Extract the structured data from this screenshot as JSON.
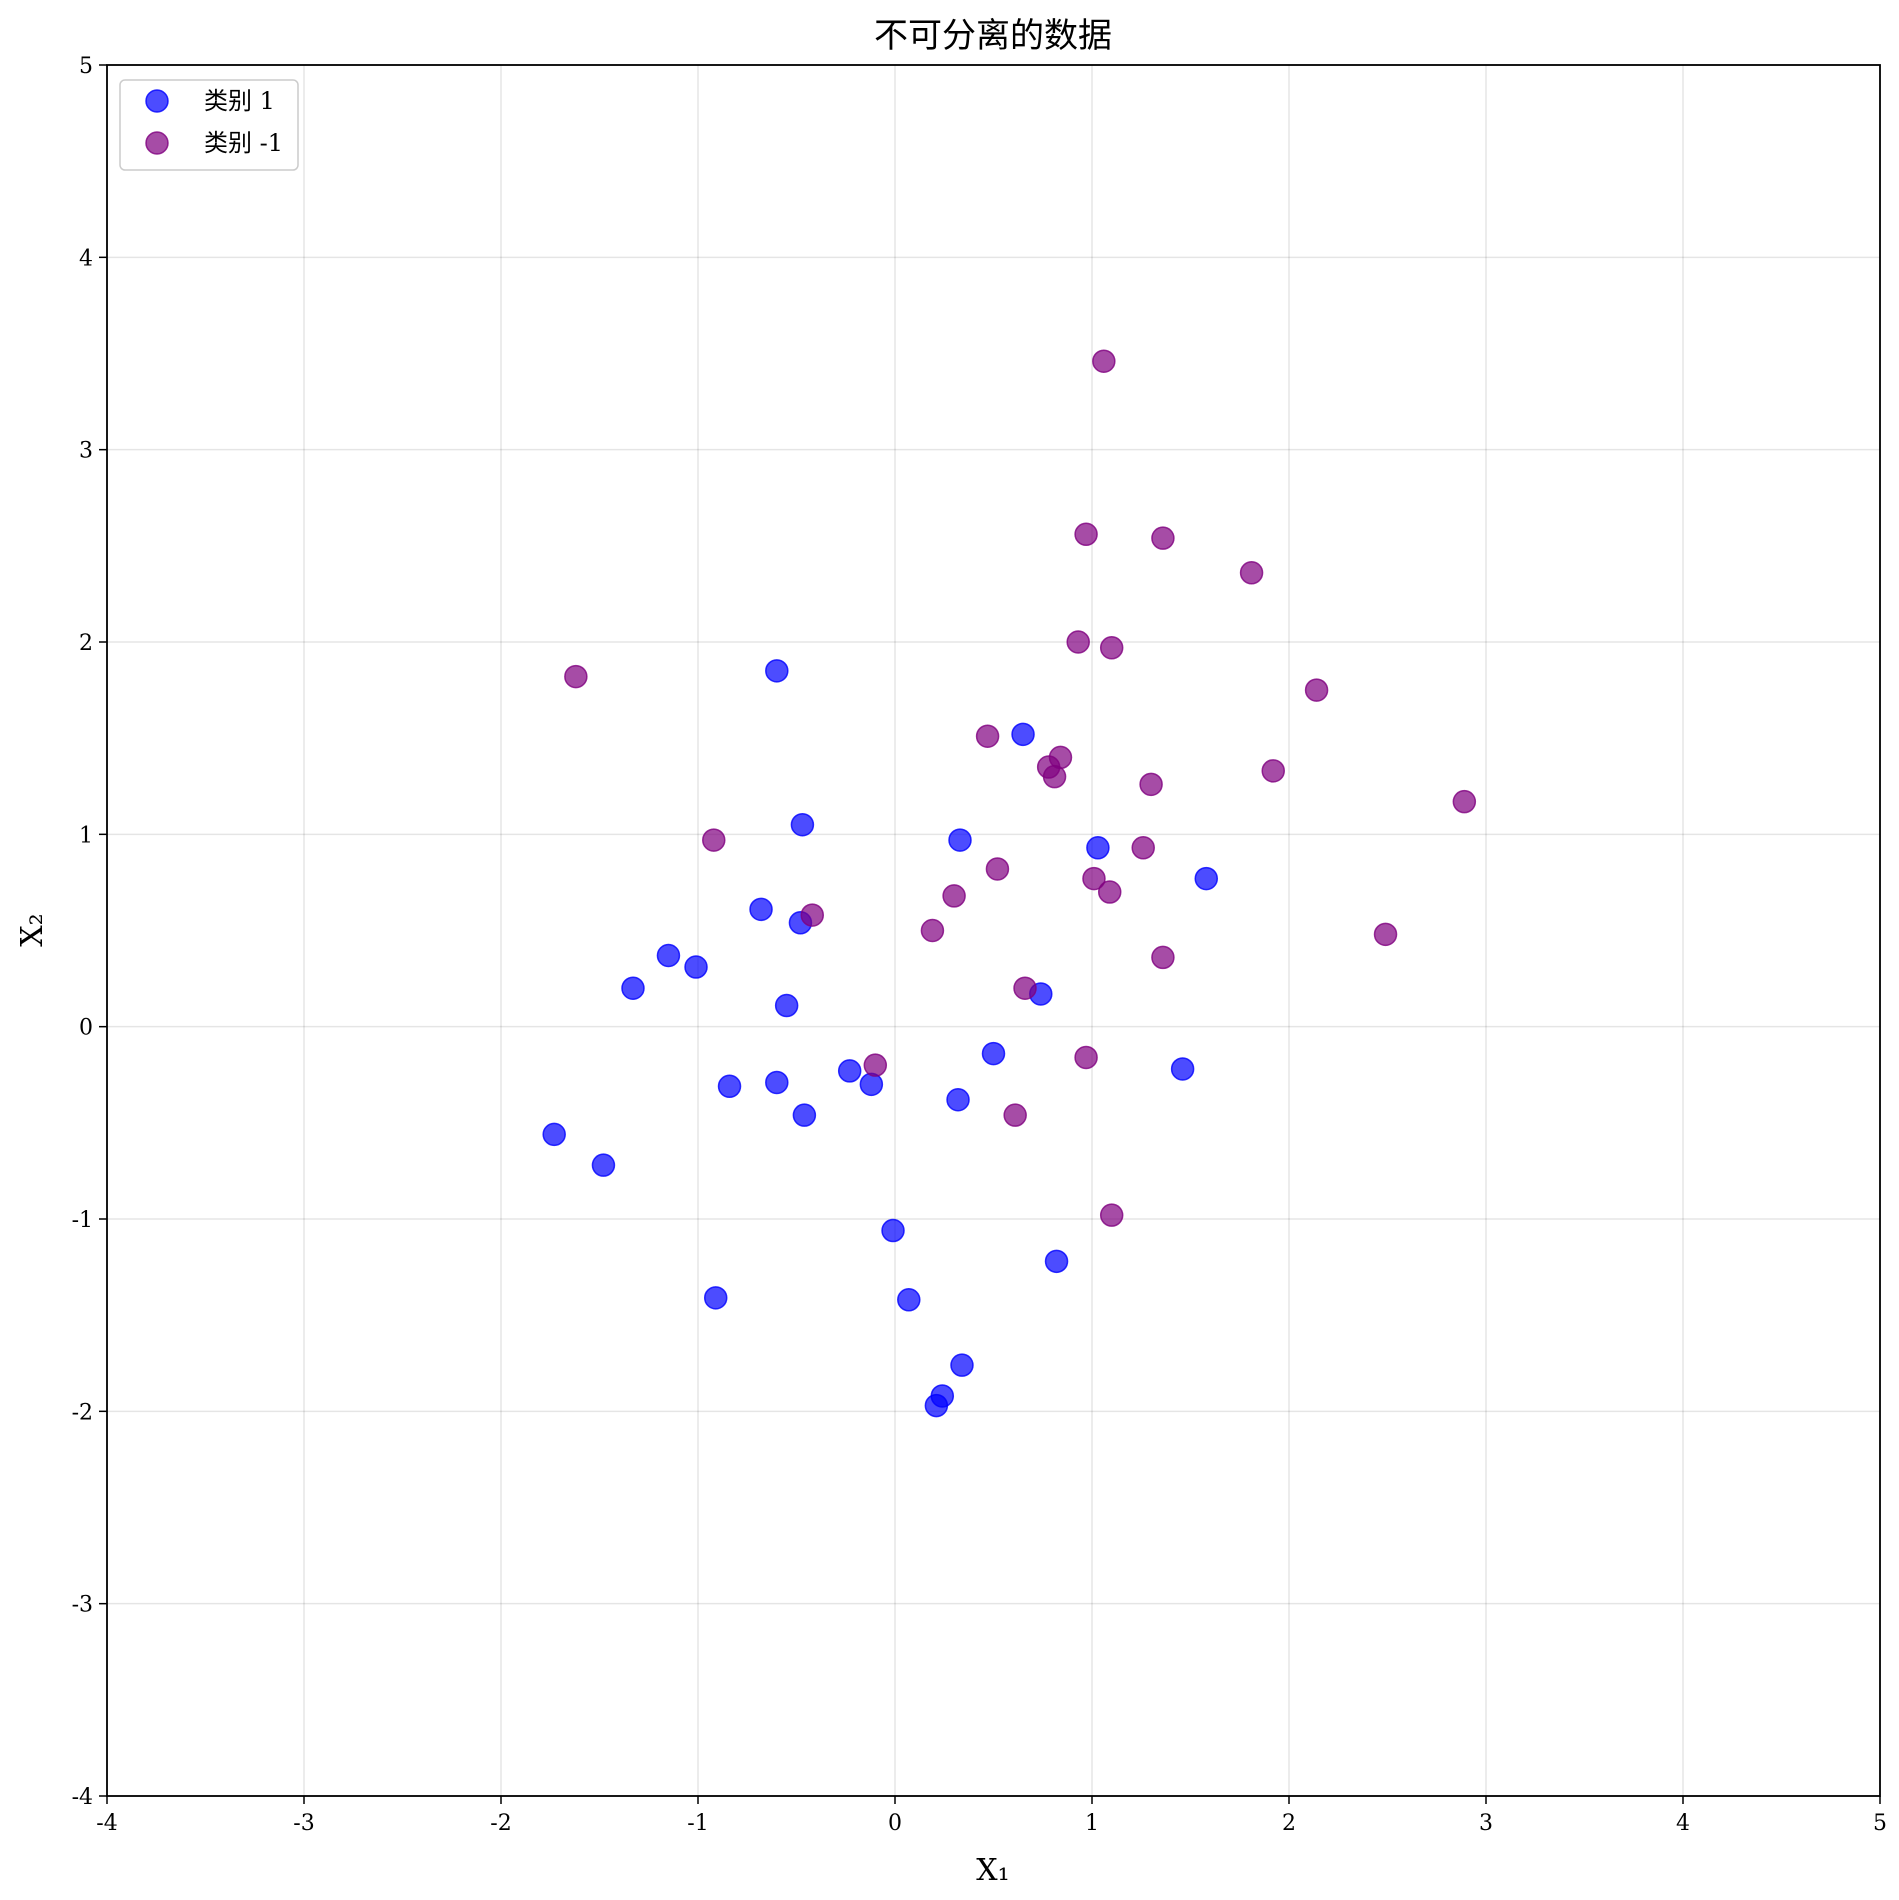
{
  "chart_data": {
    "type": "scatter",
    "title": "不可分离的数据",
    "xlabel": "X₁",
    "ylabel": "X₂",
    "xlim": [
      -4,
      5
    ],
    "ylim": [
      -4,
      5
    ],
    "xticks": [
      -4,
      -3,
      -2,
      -1,
      0,
      1,
      2,
      3,
      4,
      5
    ],
    "yticks": [
      -4,
      -3,
      -2,
      -1,
      0,
      1,
      2,
      3,
      4,
      5
    ],
    "grid": true,
    "legend_position": "top-left",
    "series": [
      {
        "name": "类别 1",
        "color": "#0000ff",
        "points": [
          [
            -0.6,
            1.85
          ],
          [
            0.65,
            1.52
          ],
          [
            -0.47,
            1.05
          ],
          [
            0.33,
            0.97
          ],
          [
            1.03,
            0.93
          ],
          [
            1.58,
            0.77
          ],
          [
            -0.68,
            0.61
          ],
          [
            -0.48,
            0.54
          ],
          [
            -1.15,
            0.37
          ],
          [
            -1.01,
            0.31
          ],
          [
            -1.33,
            0.2
          ],
          [
            -0.55,
            0.11
          ],
          [
            0.74,
            0.17
          ],
          [
            0.5,
            -0.14
          ],
          [
            1.46,
            -0.22
          ],
          [
            -0.23,
            -0.23
          ],
          [
            -0.12,
            -0.3
          ],
          [
            -0.84,
            -0.31
          ],
          [
            -0.6,
            -0.29
          ],
          [
            0.32,
            -0.38
          ],
          [
            -0.46,
            -0.46
          ],
          [
            -1.73,
            -0.56
          ],
          [
            -1.48,
            -0.72
          ],
          [
            -0.01,
            -1.06
          ],
          [
            0.82,
            -1.22
          ],
          [
            -0.91,
            -1.41
          ],
          [
            0.07,
            -1.42
          ],
          [
            0.34,
            -1.76
          ],
          [
            0.24,
            -1.92
          ],
          [
            0.21,
            -1.97
          ]
        ]
      },
      {
        "name": "类别 -1",
        "color": "#800080",
        "points": [
          [
            1.06,
            3.46
          ],
          [
            0.97,
            2.56
          ],
          [
            1.36,
            2.54
          ],
          [
            1.81,
            2.36
          ],
          [
            0.93,
            2.0
          ],
          [
            1.1,
            1.97
          ],
          [
            -1.62,
            1.82
          ],
          [
            2.14,
            1.75
          ],
          [
            0.47,
            1.51
          ],
          [
            0.84,
            1.4
          ],
          [
            0.78,
            1.35
          ],
          [
            0.81,
            1.3
          ],
          [
            1.92,
            1.33
          ],
          [
            1.3,
            1.26
          ],
          [
            2.89,
            1.17
          ],
          [
            -0.92,
            0.97
          ],
          [
            1.26,
            0.93
          ],
          [
            0.52,
            0.82
          ],
          [
            1.01,
            0.77
          ],
          [
            1.09,
            0.7
          ],
          [
            0.3,
            0.68
          ],
          [
            -0.42,
            0.58
          ],
          [
            0.19,
            0.5
          ],
          [
            2.49,
            0.48
          ],
          [
            1.36,
            0.36
          ],
          [
            0.66,
            0.2
          ],
          [
            -0.1,
            -0.2
          ],
          [
            0.97,
            -0.16
          ],
          [
            0.61,
            -0.46
          ],
          [
            1.1,
            -0.98
          ]
        ]
      }
    ]
  }
}
